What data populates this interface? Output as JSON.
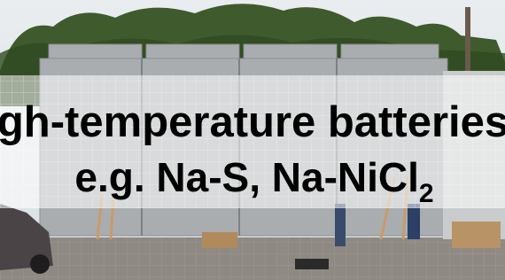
{
  "caption": {
    "line1": "High-temperature batteries",
    "line2": "e.g. Na-S, Na-NiCl",
    "line2_subscript": "2"
  }
}
